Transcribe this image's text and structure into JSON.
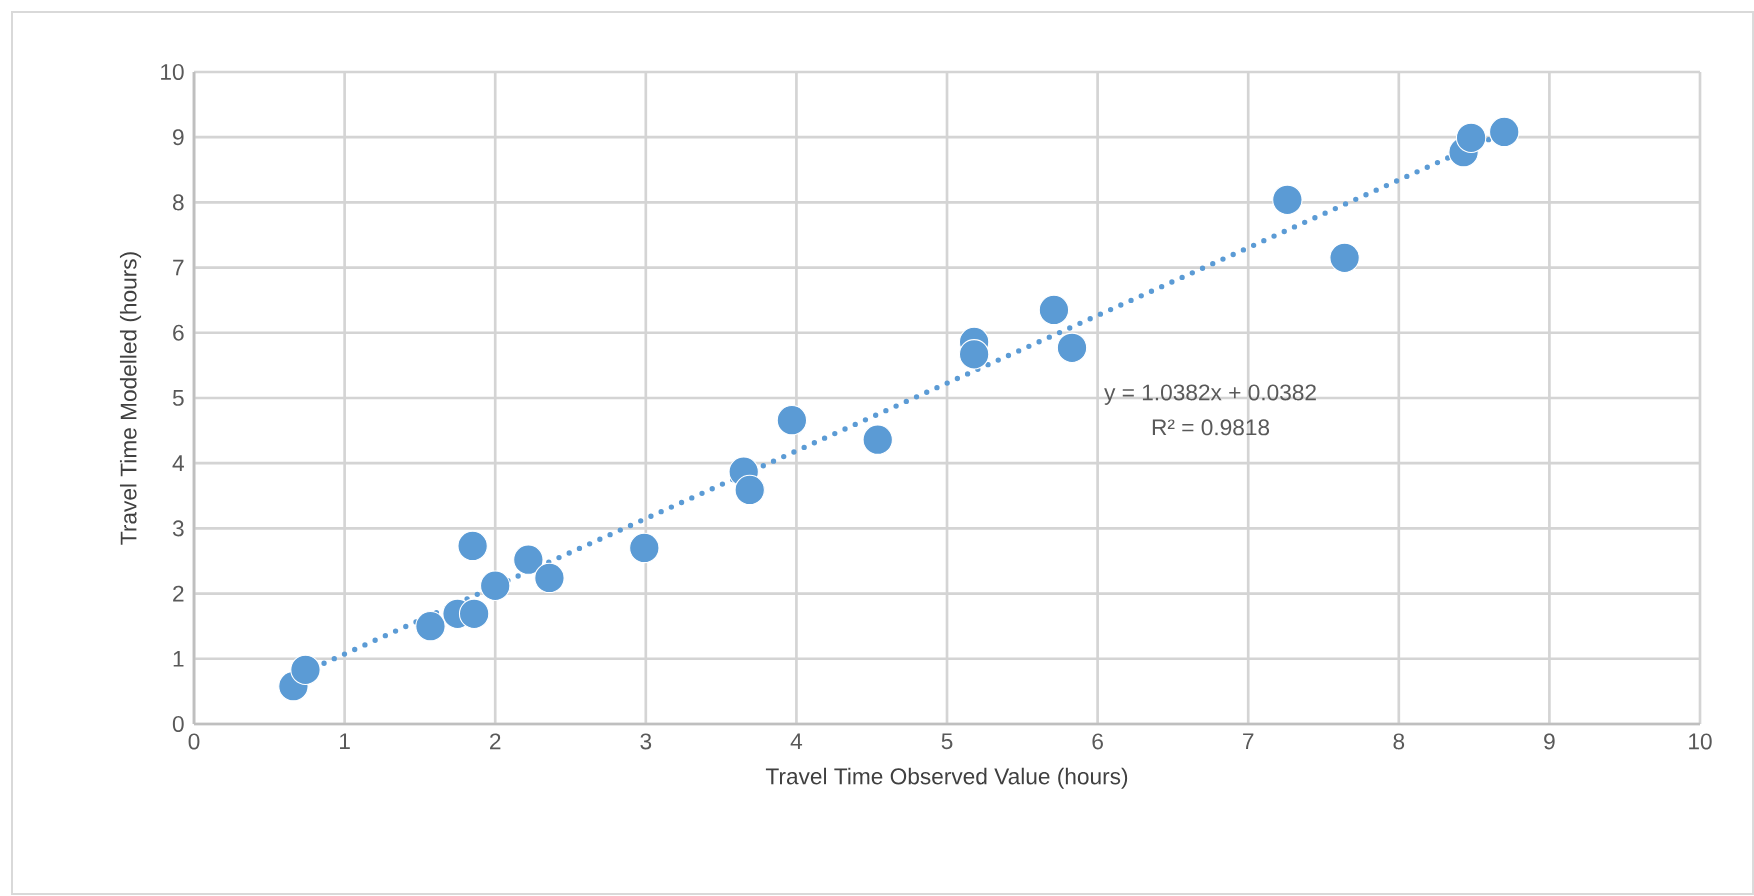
{
  "chart_data": {
    "type": "scatter",
    "xlabel": "Travel Time  Observed Value (hours)",
    "ylabel": "Travel Time Modelled  (hours)",
    "xlim": [
      0,
      10
    ],
    "ylim": [
      0,
      10
    ],
    "xticks": [
      0,
      1,
      2,
      3,
      4,
      5,
      6,
      7,
      8,
      9,
      10
    ],
    "yticks": [
      0,
      1,
      2,
      3,
      4,
      5,
      6,
      7,
      8,
      9,
      10
    ],
    "grid": true,
    "annotations": [
      "y = 1.0382x + 0.0382",
      "R² = 0.9818"
    ],
    "series": [
      {
        "color": "#5b9bd5",
        "marker": "circle",
        "x": [
          0.66,
          0.74,
          1.57,
          1.75,
          1.86,
          1.85,
          2.0,
          2.22,
          2.36,
          2.99,
          3.65,
          3.69,
          3.97,
          4.54,
          5.18,
          5.18,
          5.71,
          5.83,
          7.26,
          7.64,
          8.43,
          8.48,
          8.7
        ],
        "values": [
          0.58,
          0.83,
          1.5,
          1.69,
          1.69,
          2.73,
          2.12,
          2.52,
          2.24,
          2.7,
          3.87,
          3.59,
          4.66,
          4.36,
          5.86,
          5.67,
          6.35,
          5.77,
          8.04,
          7.15,
          8.77,
          8.99,
          9.08
        ]
      },
      {
        "type": "line",
        "color": "#5b9bd5",
        "line_style": "dotted",
        "marker": "none",
        "x": [
          0.66,
          8.7
        ],
        "values": [
          0.72,
          9.07
        ]
      }
    ]
  }
}
